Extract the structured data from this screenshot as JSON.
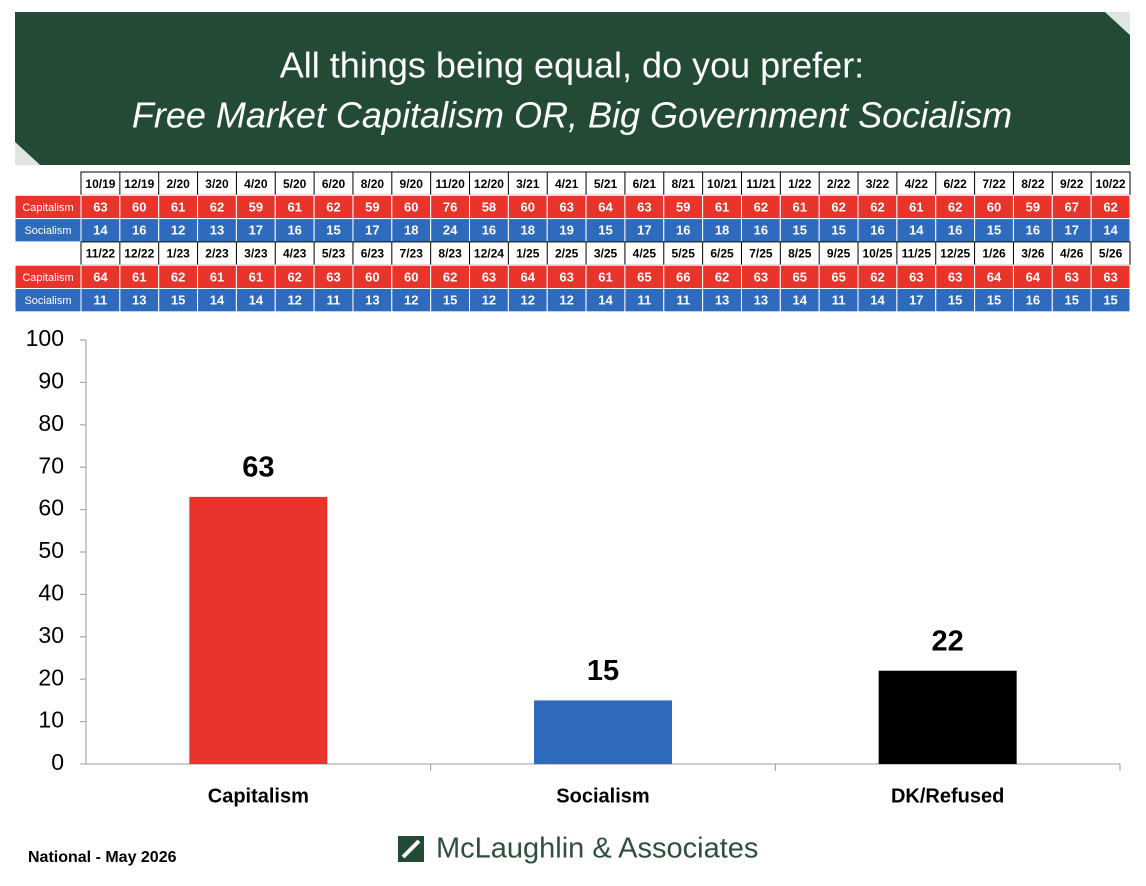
{
  "header": {
    "title_line1": "All things being equal, do you prefer:",
    "title_line2": "Free Market Capitalism OR, Big Government Socialism"
  },
  "table": {
    "blocks": [
      {
        "dates": [
          "10/19",
          "12/19",
          "2/20",
          "3/20",
          "4/20",
          "5/20",
          "6/20",
          "8/20",
          "9/20",
          "11/20",
          "12/20",
          "3/21",
          "4/21",
          "5/21",
          "6/21",
          "8/21",
          "10/21",
          "11/21",
          "1/22",
          "2/22",
          "3/22",
          "4/22",
          "6/22",
          "7/22",
          "8/22",
          "9/22",
          "10/22"
        ],
        "rows": [
          {
            "label": "Capitalism",
            "color": "#e8342a",
            "values": [
              63,
              60,
              61,
              62,
              59,
              61,
              62,
              59,
              60,
              76,
              58,
              60,
              63,
              64,
              63,
              59,
              61,
              62,
              61,
              62,
              62,
              61,
              62,
              60,
              59,
              67,
              62
            ]
          },
          {
            "label": "Socialism",
            "color": "#2f6bbd",
            "values": [
              14,
              16,
              12,
              13,
              17,
              16,
              15,
              17,
              18,
              24,
              16,
              18,
              19,
              15,
              17,
              16,
              18,
              16,
              15,
              15,
              16,
              14,
              16,
              15,
              16,
              17,
              14
            ]
          }
        ]
      },
      {
        "dates": [
          "11/22",
          "12/22",
          "1/23",
          "2/23",
          "3/23",
          "4/23",
          "5/23",
          "6/23",
          "7/23",
          "8/23",
          "12/24",
          "1/25",
          "2/25",
          "3/25",
          "4/25",
          "5/25",
          "6/25",
          "7/25",
          "8/25",
          "9/25",
          "10/25",
          "11/25",
          "12/25",
          "1/26",
          "3/26",
          "4/26",
          "5/26"
        ],
        "rows": [
          {
            "label": "Capitalism",
            "color": "#e8342a",
            "values": [
              64,
              61,
              62,
              61,
              61,
              62,
              63,
              60,
              60,
              62,
              63,
              64,
              63,
              61,
              65,
              66,
              62,
              63,
              65,
              65,
              62,
              63,
              63,
              64,
              64,
              63,
              63
            ]
          },
          {
            "label": "Socialism",
            "color": "#2f6bbd",
            "values": [
              11,
              13,
              15,
              14,
              14,
              12,
              11,
              13,
              12,
              15,
              12,
              12,
              12,
              14,
              11,
              11,
              13,
              13,
              14,
              11,
              14,
              17,
              15,
              15,
              16,
              15,
              15
            ]
          }
        ]
      }
    ]
  },
  "chart_data": {
    "type": "bar",
    "categories": [
      "Capitalism",
      "Socialism",
      "DK/Refused"
    ],
    "values": [
      63,
      15,
      22
    ],
    "colors": [
      "#e8342a",
      "#2f6bbd",
      "#000000"
    ],
    "ylim": [
      0,
      100
    ],
    "yticks": [
      0,
      10,
      20,
      30,
      40,
      50,
      60,
      70,
      80,
      90,
      100
    ],
    "grid": false
  },
  "footer": {
    "note": "National - May 2026",
    "logo": "McLaughlin & Associates"
  }
}
